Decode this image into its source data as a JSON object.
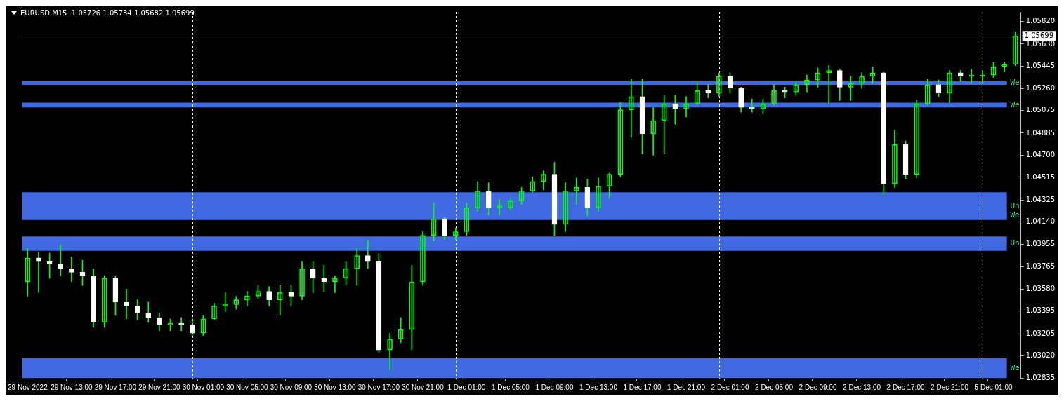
{
  "chart_data": {
    "type": "candlestick",
    "title": "EURUSD,M15  1.05726 1.05734 1.05682 1.05699",
    "color": "#00ff00",
    "colors": [
      "#00ff00",
      "#ffffff",
      "#ffffff",
      "#ffffff",
      "#ffffff",
      "#ffffff",
      "#ffffff",
      "#00ff00",
      "#ffffff",
      "#ffffff",
      "#ffffff",
      "#ffffff",
      "#ffffff",
      "#00ff00",
      "#ffffff",
      "#ffffff",
      "#00ff00",
      "#00ff00",
      "#00ff00",
      "#00ff00",
      "#00ff00",
      "#00ff00",
      "#ffffff",
      "#00ff00",
      "#ffffff",
      "#00ff00",
      "#ffffff",
      "#ffffff",
      "#00ff00",
      "#00ff00",
      "#00ff00",
      "#ffffff",
      "#ffffff",
      "#00ff00",
      "#00ff00",
      "#00ff00",
      "#00ff00",
      "#00ff00",
      "#ffffff",
      "#00ff00",
      "#00ff00",
      "#00ff00",
      "#ffffff",
      "#00ff00",
      "#00ff00",
      "#00ff00",
      "#00ff00",
      "#00ff00",
      "#ffffff",
      "#00ff00",
      "#00ff00",
      "#ffffff",
      "#00ff00",
      "#00ff00",
      "#00ff00",
      "#00ff00",
      "#ffffff",
      "#00ff00",
      "#00ff00",
      "#ffffff",
      "#00ff00",
      "#00ff00",
      "#ffffff",
      "#00ff00",
      "#ffffff",
      "#ffffff",
      "#ffffff",
      "#00ff00",
      "#00ff00",
      "#ffffff",
      "#00ff00",
      "#00ff00",
      "#00ff00",
      "#00ff00",
      "#ffffff",
      "#00ff00",
      "#00ff00",
      "#00ff00",
      "#ffffff",
      "#00ff00",
      "#ffffff",
      "#00ff00",
      "#00ff00",
      "#ffffff",
      "#00ff00",
      "#ffffff",
      "#00ff00",
      "#00ff00",
      "#00ff00",
      "#00ff00",
      "#00ff00"
    ],
    "categories": [
      "29 Nov 2022",
      null,
      null,
      null,
      "29 Nov 13:00",
      null,
      null,
      null,
      "29 Nov 17:00",
      null,
      null,
      null,
      "29 Nov 21:00",
      null,
      null,
      null,
      "30 Nov 01:00",
      null,
      null,
      null,
      "30 Nov 05:00",
      null,
      null,
      null,
      "30 Nov 09:00",
      null,
      null,
      null,
      "30 Nov 13:00",
      null,
      null,
      null,
      "30 Nov 17:00",
      null,
      null,
      null,
      "30 Nov 21:00",
      null,
      null,
      null,
      "1 Dec 01:00",
      null,
      null,
      null,
      "1 Dec 05:00",
      null,
      null,
      null,
      "1 Dec 09:00",
      null,
      null,
      null,
      "1 Dec 13:00",
      null,
      null,
      null,
      "1 Dec 17:00",
      null,
      null,
      null,
      "1 Dec 21:00",
      null,
      null,
      null,
      "2 Dec 01:00",
      null,
      null,
      null,
      "2 Dec 05:00",
      null,
      null,
      null,
      "2 Dec 09:00",
      null,
      null,
      null,
      "2 Dec 13:00",
      null,
      null,
      null,
      "2 Dec 17:00",
      null,
      null,
      null,
      "2 Dec 21:00",
      null,
      null,
      null,
      "5 Dec 01:00",
      null,
      null
    ],
    "ohlc": [
      [
        1.0364,
        1.0392,
        1.0352,
        1.0384
      ],
      [
        1.0384,
        1.0389,
        1.0355,
        1.0381
      ],
      [
        1.0381,
        1.0388,
        1.0367,
        1.0379
      ],
      [
        1.0379,
        1.0395,
        1.0369,
        1.0375
      ],
      [
        1.0375,
        1.0385,
        1.0364,
        1.0372
      ],
      [
        1.0372,
        1.0382,
        1.0361,
        1.0369
      ],
      [
        1.0369,
        1.0375,
        1.0326,
        1.033
      ],
      [
        1.033,
        1.0369,
        1.0326,
        1.0367
      ],
      [
        1.0367,
        1.0369,
        1.0336,
        1.0347
      ],
      [
        1.0347,
        1.0358,
        1.0333,
        1.0344
      ],
      [
        1.0344,
        1.0349,
        1.0332,
        1.0338
      ],
      [
        1.0338,
        1.0347,
        1.033,
        1.0334
      ],
      [
        1.0334,
        1.0338,
        1.0323,
        1.0328
      ],
      [
        1.0328,
        1.0333,
        1.0323,
        1.0329
      ],
      [
        1.0329,
        1.0334,
        1.0323,
        1.0328
      ],
      [
        1.0328,
        1.0333,
        1.0319,
        1.0321
      ],
      [
        1.0321,
        1.0336,
        1.0319,
        1.0333
      ],
      [
        1.0333,
        1.0346,
        1.0332,
        1.0344
      ],
      [
        1.0344,
        1.0355,
        1.0339,
        1.0345
      ],
      [
        1.0345,
        1.0352,
        1.0341,
        1.0349
      ],
      [
        1.0349,
        1.0356,
        1.0344,
        1.0352
      ],
      [
        1.0352,
        1.0361,
        1.035,
        1.0356
      ],
      [
        1.0356,
        1.036,
        1.0344,
        1.0349
      ],
      [
        1.0349,
        1.0361,
        1.0336,
        1.0355
      ],
      [
        1.0355,
        1.0361,
        1.0344,
        1.0352
      ],
      [
        1.0352,
        1.0381,
        1.0349,
        1.0375
      ],
      [
        1.0375,
        1.0381,
        1.0355,
        1.0367
      ],
      [
        1.0367,
        1.0378,
        1.0356,
        1.0364
      ],
      [
        1.0364,
        1.0369,
        1.0355,
        1.0367
      ],
      [
        1.0367,
        1.0381,
        1.0361,
        1.0375
      ],
      [
        1.0375,
        1.0392,
        1.0361,
        1.0386
      ],
      [
        1.0386,
        1.0399,
        1.0375,
        1.0381
      ],
      [
        1.0381,
        1.0388,
        1.0305,
        1.0307
      ],
      [
        1.0307,
        1.0321,
        1.029,
        1.0316
      ],
      [
        1.0316,
        1.0334,
        1.0313,
        1.0324
      ],
      [
        1.0324,
        1.0378,
        1.0307,
        1.0364
      ],
      [
        1.0364,
        1.0406,
        1.0361,
        1.0403
      ],
      [
        1.0403,
        1.043,
        1.0398,
        1.0417
      ],
      [
        1.0417,
        1.0418,
        1.0399,
        1.0403
      ],
      [
        1.0403,
        1.0409,
        1.0399,
        1.0406
      ],
      [
        1.0406,
        1.043,
        1.0403,
        1.0426
      ],
      [
        1.0426,
        1.0448,
        1.0423,
        1.044
      ],
      [
        1.044,
        1.0447,
        1.042,
        1.0426
      ],
      [
        1.0426,
        1.0433,
        1.042,
        1.0428
      ],
      [
        1.0426,
        1.0434,
        1.0424,
        1.0432
      ],
      [
        1.0432,
        1.0443,
        1.0429,
        1.044
      ],
      [
        1.044,
        1.0452,
        1.0439,
        1.0448
      ],
      [
        1.0448,
        1.0457,
        1.0441,
        1.0454
      ],
      [
        1.0454,
        1.0464,
        1.0403,
        1.0412
      ],
      [
        1.0412,
        1.0447,
        1.0406,
        1.044
      ],
      [
        1.044,
        1.0451,
        1.0429,
        1.0443
      ],
      [
        1.0443,
        1.045,
        1.0419,
        1.0426
      ],
      [
        1.0426,
        1.0451,
        1.0423,
        1.0444
      ],
      [
        1.0444,
        1.0455,
        1.0434,
        1.0454
      ],
      [
        1.0454,
        1.0514,
        1.0452,
        1.0508
      ],
      [
        1.0508,
        1.0534,
        1.0485,
        1.0519
      ],
      [
        1.0519,
        1.0534,
        1.0471,
        1.0488
      ],
      [
        1.0488,
        1.051,
        1.047,
        1.0499
      ],
      [
        1.0499,
        1.052,
        1.0471,
        1.0513
      ],
      [
        1.0513,
        1.052,
        1.0496,
        1.0509
      ],
      [
        1.0509,
        1.0519,
        1.0502,
        1.0513
      ],
      [
        1.0513,
        1.0531,
        1.0512,
        1.0524
      ],
      [
        1.0524,
        1.0529,
        1.0518,
        1.0522
      ],
      [
        1.0522,
        1.0539,
        1.0519,
        1.0536
      ],
      [
        1.0536,
        1.0539,
        1.0522,
        1.0526
      ],
      [
        1.0526,
        1.0527,
        1.0506,
        1.051
      ],
      [
        1.051,
        1.0517,
        1.0506,
        1.0509
      ],
      [
        1.0509,
        1.0517,
        1.0505,
        1.0513
      ],
      [
        1.0513,
        1.0529,
        1.0512,
        1.0524
      ],
      [
        1.0524,
        1.0527,
        1.0518,
        1.0523
      ],
      [
        1.0523,
        1.0531,
        1.052,
        1.0529
      ],
      [
        1.0529,
        1.0537,
        1.0523,
        1.0533
      ],
      [
        1.0533,
        1.0543,
        1.0527,
        1.0539
      ],
      [
        1.0539,
        1.0545,
        1.0513,
        1.0541
      ],
      [
        1.0541,
        1.0542,
        1.0516,
        1.0527
      ],
      [
        1.0527,
        1.0536,
        1.0516,
        1.053
      ],
      [
        1.053,
        1.0539,
        1.0526,
        1.0536
      ],
      [
        1.0536,
        1.0544,
        1.053,
        1.0539
      ],
      [
        1.0539,
        1.054,
        1.0437,
        1.0446
      ],
      [
        1.0446,
        1.0491,
        1.0443,
        1.0479
      ],
      [
        1.0479,
        1.0482,
        1.045,
        1.0454
      ],
      [
        1.0454,
        1.0516,
        1.0451,
        1.0513
      ],
      [
        1.0513,
        1.0534,
        1.0512,
        1.0529
      ],
      [
        1.0529,
        1.0533,
        1.0519,
        1.0522
      ],
      [
        1.0522,
        1.0541,
        1.0514,
        1.0539
      ],
      [
        1.0539,
        1.0541,
        1.0532,
        1.0536
      ],
      [
        1.0536,
        1.0542,
        1.053,
        1.0537
      ],
      [
        1.0536,
        1.0541,
        1.053,
        1.0537
      ],
      [
        1.0537,
        1.0548,
        1.0535,
        1.0544
      ],
      [
        1.0544,
        1.0548,
        1.054,
        1.0546
      ],
      [
        1.0546,
        1.05734,
        1.0545,
        1.05699
      ]
    ],
    "ylim": [
      1.0283,
      1.059
    ],
    "yticks": [
      {
        "value": 1.0582,
        "label": "1.05820"
      },
      {
        "value": 1.0563,
        "label": "1.05630"
      },
      {
        "value": 1.05445,
        "label": "1.05445"
      },
      {
        "value": 1.0526,
        "label": "1.05260"
      },
      {
        "value": 1.05075,
        "label": "1.05075"
      },
      {
        "value": 1.04885,
        "label": "1.04885"
      },
      {
        "value": 1.047,
        "label": "1.04700"
      },
      {
        "value": 1.04515,
        "label": "1.04515"
      },
      {
        "value": 1.04325,
        "label": "1.04325"
      },
      {
        "value": 1.0414,
        "label": "1.04140"
      },
      {
        "value": 1.03955,
        "label": "1.03955"
      },
      {
        "value": 1.03765,
        "label": "1.03765"
      },
      {
        "value": 1.0358,
        "label": "1.03580"
      },
      {
        "value": 1.03395,
        "label": "1.03395"
      },
      {
        "value": 1.03205,
        "label": "1.03205"
      },
      {
        "value": 1.0302,
        "label": "1.03020"
      },
      {
        "value": 1.02835,
        "label": "1.02835"
      }
    ],
    "ref_lines": [
      {
        "axis": "y",
        "value": 1.05699,
        "label": "1.05699",
        "color": "#a8b0b8",
        "line_style": "solid"
      }
    ],
    "bands": [
      {
        "axis": "y",
        "from": 1.0529,
        "to": 1.0532,
        "label": "We",
        "color": "#4169e1"
      },
      {
        "axis": "y",
        "from": 1.051,
        "to": 1.0514,
        "label": "We",
        "color": "#4169e1"
      },
      {
        "axis": "y",
        "from": 1.0416,
        "to": 1.0439,
        "label": "Un",
        "color": "#4169e1"
      },
      {
        "axis": "y",
        "from": 1.0416,
        "to": 1.0423,
        "label": "We",
        "color": "#4169e1"
      },
      {
        "axis": "y",
        "from": 1.039,
        "to": 1.0402,
        "label": "Un",
        "color": "#4169e1"
      },
      {
        "axis": "y",
        "from": 1.02835,
        "to": 1.03,
        "label": "We",
        "color": "#4169e1"
      }
    ],
    "grid": false,
    "legend": false
  }
}
